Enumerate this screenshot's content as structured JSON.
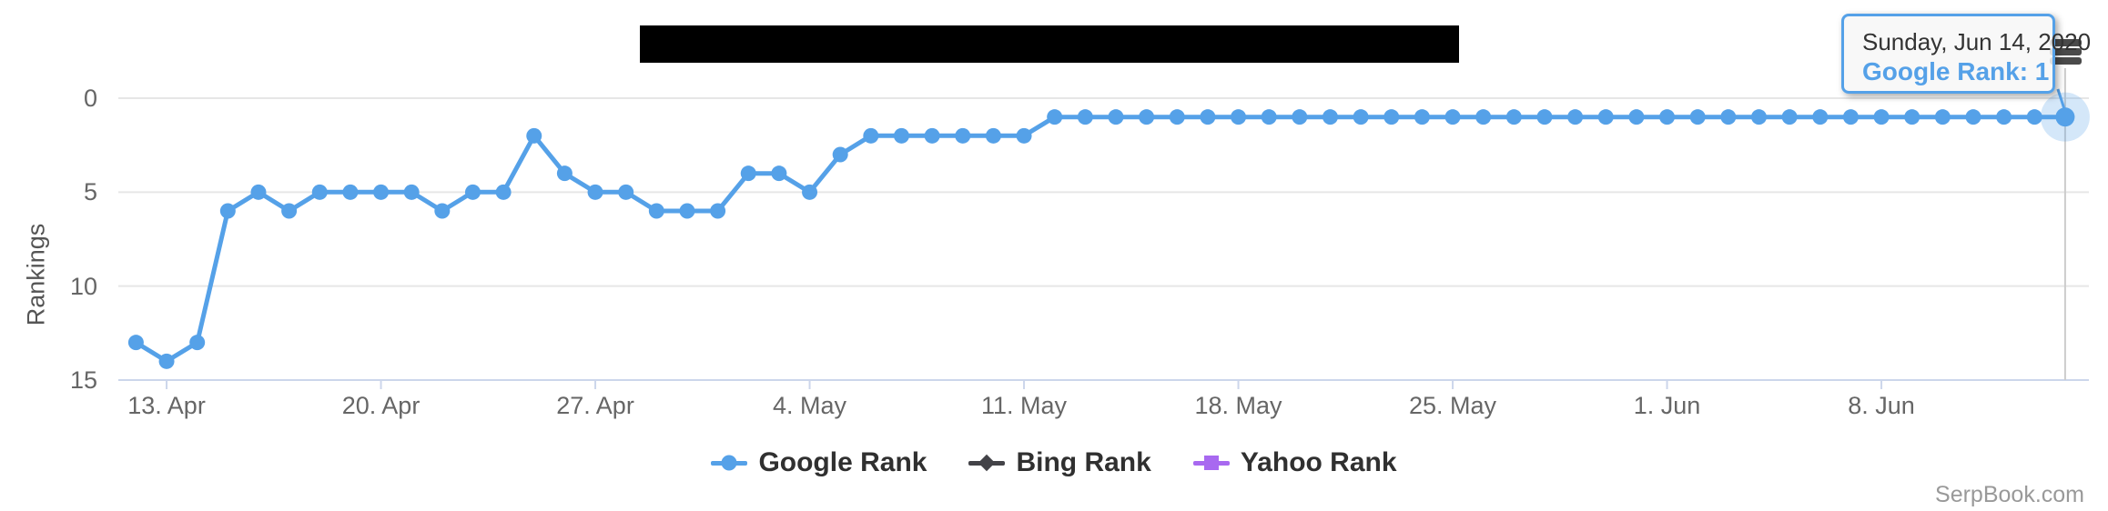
{
  "page": {
    "credit": "SerpBook.com",
    "header": {
      "title_redacted": true
    }
  },
  "tooltip": {
    "date": "Sunday, Jun 14, 2020",
    "series_label": "Google Rank:",
    "value": "1"
  },
  "icons": {
    "menu": "hamburger-icon"
  },
  "chart_data": {
    "type": "line",
    "ylabel": "Rankings",
    "y_ticks": [
      0,
      5,
      10,
      15
    ],
    "y_inverted": true,
    "ylim": [
      0,
      15
    ],
    "grid": true,
    "legend_position": "bottom-center",
    "x_tick_labels": [
      "13. Apr",
      "20. Apr",
      "27. Apr",
      "4. May",
      "11. May",
      "18. May",
      "25. May",
      "1. Jun",
      "8. Jun"
    ],
    "point_interval": "daily",
    "first_point_offset_days_before_first_tick": 1,
    "last_point_date": "Sunday, Jun 14, 2020",
    "selected_point": {
      "series": "Google Rank",
      "value": 1,
      "index": 63
    },
    "series": [
      {
        "name": "Google Rank",
        "color": "#55a1e8",
        "marker": "circle",
        "values": [
          13,
          14,
          13,
          6,
          5,
          6,
          5,
          5,
          5,
          5,
          6,
          5,
          5,
          2,
          4,
          5,
          5,
          6,
          6,
          6,
          4,
          4,
          5,
          3,
          2,
          2,
          2,
          2,
          2,
          2,
          1,
          1,
          1,
          1,
          1,
          1,
          1,
          1,
          1,
          1,
          1,
          1,
          1,
          1,
          1,
          1,
          1,
          1,
          1,
          1,
          1,
          1,
          1,
          1,
          1,
          1,
          1,
          1,
          1,
          1,
          1,
          1,
          1,
          1
        ]
      },
      {
        "name": "Bing Rank",
        "color": "#434348",
        "marker": "diamond",
        "values": []
      },
      {
        "name": "Yahoo Rank",
        "color": "#a869f0",
        "marker": "square",
        "values": []
      }
    ],
    "colors": {
      "gridline": "#e6e6e6",
      "axis_line": "#ccd6eb",
      "crosshair": "#cccccc",
      "axis_text": "#666666",
      "legend_text": "#303030"
    }
  }
}
